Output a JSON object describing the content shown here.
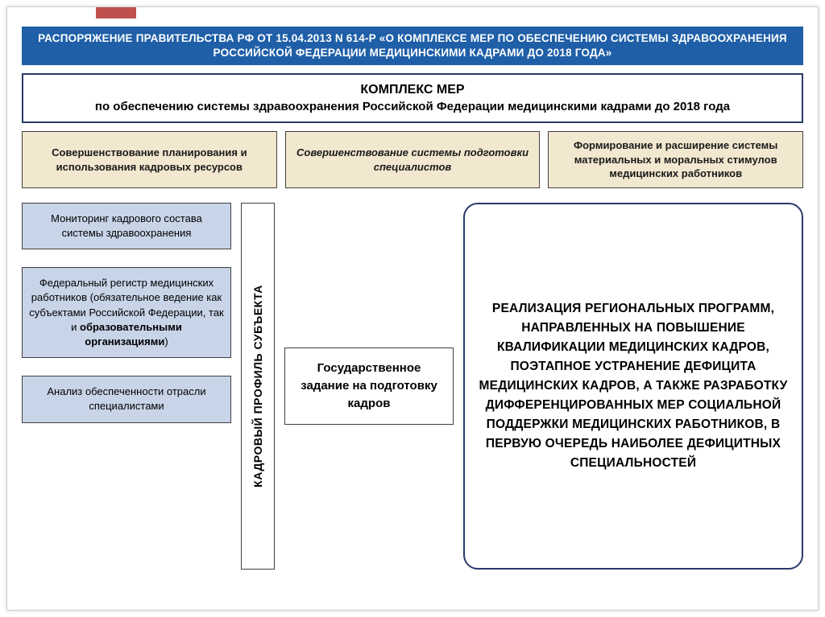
{
  "header": "РАСПОРЯЖЕНИЕ ПРАВИТЕЛЬСТВА РФ ОТ 15.04.2013 N 614-Р «О КОМПЛЕКСЕ МЕР ПО ОБЕСПЕЧЕНИЮ СИСТЕМЫ ЗДРАВООХРАНЕНИЯ РОССИЙСКОЙ ФЕДЕРАЦИИ МЕДИЦИНСКИМИ КАДРАМИ ДО 2018 ГОДА»",
  "main_title": {
    "line1": "КОМПЛЕКС МЕР",
    "line2": "по обеспечению системы здравоохранения Российской Федерации медицинскими кадрами до 2018 года"
  },
  "cols": {
    "c1": "Совершенствование планирования и использования кадровых ресурсов",
    "c2": "Совершенствование системы подготовки специалистов",
    "c3": "Формирование и расширение системы материальных и моральных стимулов медицинских работников"
  },
  "left": {
    "b1": "Мониторинг кадрового состава системы здравоохранения",
    "b2_pre": "Федеральный регистр медицинских работников (обязательное ведение как субъектами Российской Федерации, так и ",
    "b2_bold": "образовательными организациями",
    "b2_post": ")",
    "b3": "Анализ обеспеченности отрасли специалистами"
  },
  "vertical": "КАДРОВЫЙ ПРОФИЛЬ СУБЪЕКТА",
  "center": "Государственное задание на подготовку кадров",
  "right": "РЕАЛИЗАЦИЯ РЕГИОНАЛЬНЫХ ПРОГРАММ, НАПРАВЛЕННЫХ НА ПОВЫШЕНИЕ КВАЛИФИКАЦИИ МЕДИЦИНСКИХ КАДРОВ, ПОЭТАПНОЕ УСТРАНЕНИЕ ДЕФИЦИТА МЕДИЦИНСКИХ КАДРОВ, А ТАКЖЕ РАЗРАБОТКУ ДИФФЕРЕНЦИРОВАННЫХ МЕР СОЦИАЛЬНОЙ ПОДДЕРЖКИ МЕДИЦИНСКИХ РАБОТНИКОВ, В ПЕРВУЮ ОЧЕРЕДЬ НАИБОЛЕЕ ДЕФИЦИТНЫХ СПЕЦИАЛЬНОСТЕЙ",
  "colors": {
    "header_bg": "#1f5fa8",
    "header_fg": "#ffffff",
    "border_dark": "#2a3a6a",
    "beige_bg": "#f2e7cf",
    "blue_box_bg": "#c8d4e8",
    "red_tab": "#c0504d"
  }
}
